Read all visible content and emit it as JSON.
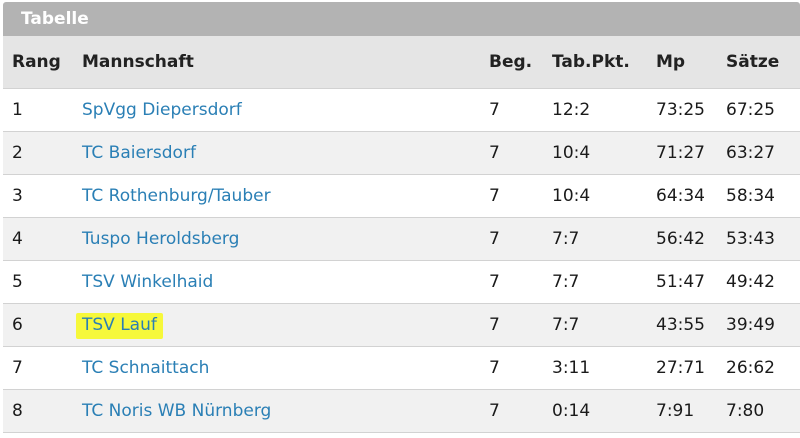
{
  "panel": {
    "title": "Tabelle"
  },
  "table": {
    "headers": {
      "rank": "Rang",
      "team": "Mannschaft",
      "played": "Beg.",
      "points": "Tab.Pkt.",
      "matches": "Mp",
      "sets": "Sätze"
    },
    "rows": [
      {
        "rank": "1",
        "team": "SpVgg Diepersdorf",
        "played": "7",
        "points": "12:2",
        "matches": "73:25",
        "sets": "67:25"
      },
      {
        "rank": "2",
        "team": "TC Baiersdorf",
        "played": "7",
        "points": "10:4",
        "matches": "71:27",
        "sets": "63:27"
      },
      {
        "rank": "3",
        "team": "TC Rothenburg/Tauber",
        "played": "7",
        "points": "10:4",
        "matches": "64:34",
        "sets": "58:34"
      },
      {
        "rank": "4",
        "team": "Tuspo Heroldsberg",
        "played": "7",
        "points": "7:7",
        "matches": "56:42",
        "sets": "53:43"
      },
      {
        "rank": "5",
        "team": "TSV Winkelhaid",
        "played": "7",
        "points": "7:7",
        "matches": "51:47",
        "sets": "49:42"
      },
      {
        "rank": "6",
        "team": "TSV Lauf",
        "played": "7",
        "points": "7:7",
        "matches": "43:55",
        "sets": "39:49"
      },
      {
        "rank": "7",
        "team": "TC Schnaittach",
        "played": "7",
        "points": "3:11",
        "matches": "27:71",
        "sets": "26:62"
      },
      {
        "rank": "8",
        "team": "TC Noris WB Nürnberg",
        "played": "7",
        "points": "0:14",
        "matches": "7:91",
        "sets": "7:80"
      }
    ]
  },
  "colors": {
    "header_bar": "#b3b3b3",
    "link": "#2a7fb5",
    "highlight": "#f6f83a"
  }
}
